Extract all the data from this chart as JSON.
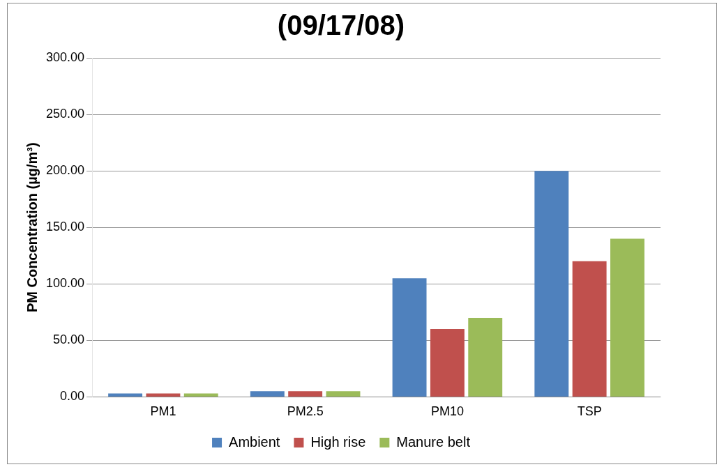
{
  "chart_data": {
    "type": "bar",
    "title": "(09/17/08)",
    "ylabel": "PM Concentration (µg/m³)",
    "categories": [
      "PM1",
      "PM2.5",
      "PM10",
      "TSP"
    ],
    "series": [
      {
        "name": "Ambient",
        "color": "#4f81bd",
        "values": [
          3,
          5,
          105,
          200
        ]
      },
      {
        "name": "High rise",
        "color": "#c0504d",
        "values": [
          3,
          5,
          60,
          120
        ]
      },
      {
        "name": "Manure belt",
        "color": "#9bbb59",
        "values": [
          3,
          5,
          70,
          140
        ]
      }
    ],
    "ylim": [
      0,
      300
    ],
    "yticks": [
      {
        "value": 0,
        "label": "0.00"
      },
      {
        "value": 50,
        "label": "50.00"
      },
      {
        "value": 100,
        "label": "100.00"
      },
      {
        "value": 150,
        "label": "150.00"
      },
      {
        "value": 200,
        "label": "200.00"
      },
      {
        "value": 250,
        "label": "250.00"
      },
      {
        "value": 300,
        "label": "300.00"
      }
    ],
    "grid": "y",
    "legend": "bottom"
  }
}
